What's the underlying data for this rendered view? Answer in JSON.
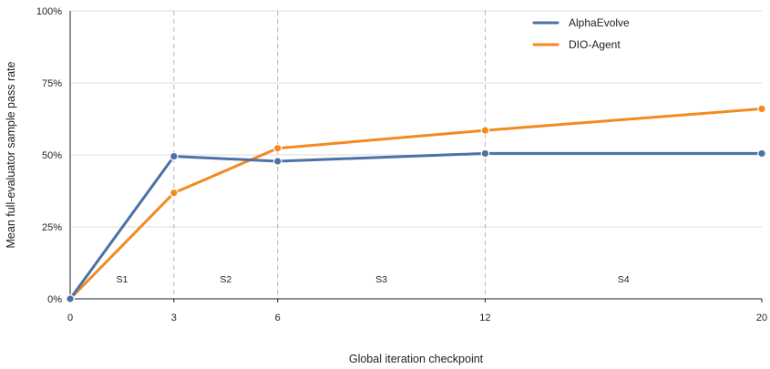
{
  "chart_data": {
    "type": "line",
    "xlabel": "Global iteration checkpoint",
    "ylabel": "Mean full-evaluator sample pass rate",
    "x": [
      0,
      3,
      6,
      12,
      20
    ],
    "xlim": [
      0,
      20
    ],
    "ylim": [
      0,
      100
    ],
    "y_ticks": [
      "0%",
      "25%",
      "50%",
      "75%",
      "100%"
    ],
    "y_tick_values": [
      0,
      25,
      50,
      75,
      100
    ],
    "x_ticks": [
      "0",
      "3",
      "6",
      "12",
      "20"
    ],
    "grid": "horizontal",
    "stage_boundaries": [
      3,
      6,
      12
    ],
    "regions": [
      {
        "label": "S1",
        "x": 1.5
      },
      {
        "label": "S2",
        "x": 4.5
      },
      {
        "label": "S3",
        "x": 9
      },
      {
        "label": "S4",
        "x": 16
      }
    ],
    "legend_position": "top-right",
    "series": [
      {
        "name": "AlphaEvolve",
        "color": "#4a72a6",
        "values": [
          0,
          49.5,
          47.8,
          50.5,
          50.5
        ]
      },
      {
        "name": "DIO-Agent",
        "color": "#f28a20",
        "values": [
          0,
          36.8,
          52.3,
          58.5,
          66
        ]
      }
    ]
  }
}
